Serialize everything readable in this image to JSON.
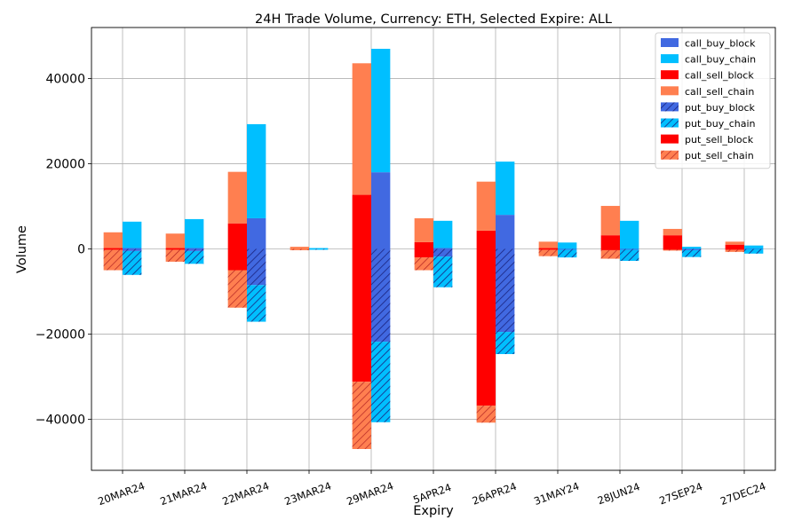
{
  "chart_data": {
    "type": "bar",
    "title": "24H Trade Volume, Currency: ETH, Selected Expire: ALL",
    "xlabel": "Expiry",
    "ylabel": "Volume",
    "ylim": [
      -52000,
      52000
    ],
    "yticks": [
      -40000,
      -20000,
      0,
      20000,
      40000
    ],
    "ytick_labels": [
      "−40000",
      "−20000",
      "0",
      "20000",
      "40000"
    ],
    "grid": true,
    "legend_position": "top-right",
    "categories": [
      "20MAR24",
      "21MAR24",
      "22MAR24",
      "23MAR24",
      "29MAR24",
      "5APR24",
      "26APR24",
      "31MAY24",
      "28JUN24",
      "27SEP24",
      "27DEC24"
    ],
    "colors": {
      "call_buy_block": "#4169e1",
      "call_buy_chain": "#00bfff",
      "call_sell_block": "#ff0000",
      "call_sell_chain": "#ff7f50",
      "put_buy_block": "#4169e1",
      "put_buy_chain": "#00bfff",
      "put_sell_block": "#ff0000",
      "put_sell_chain": "#ff7f50"
    },
    "series": [
      {
        "name": "call_buy_block",
        "group": "buy",
        "side": "call",
        "hatched": false,
        "values": [
          200,
          200,
          7200,
          0,
          18000,
          200,
          8000,
          0,
          0,
          0,
          0
        ]
      },
      {
        "name": "call_buy_chain",
        "group": "buy",
        "side": "call",
        "hatched": false,
        "values": [
          6200,
          6800,
          22100,
          200,
          29000,
          6400,
          12500,
          1500,
          6600,
          500,
          800
        ]
      },
      {
        "name": "call_sell_block",
        "group": "sell",
        "side": "call",
        "hatched": false,
        "values": [
          200,
          200,
          6000,
          0,
          12700,
          1600,
          4300,
          200,
          3200,
          3200,
          1000
        ]
      },
      {
        "name": "call_sell_chain",
        "group": "sell",
        "side": "call",
        "hatched": false,
        "values": [
          3700,
          3400,
          12100,
          500,
          30900,
          5600,
          11500,
          1500,
          6900,
          1500,
          700
        ]
      },
      {
        "name": "put_buy_block",
        "group": "buy",
        "side": "put",
        "hatched": true,
        "values": [
          -500,
          -500,
          -8500,
          0,
          -21800,
          -1800,
          -19500,
          -200,
          -200,
          -300,
          -100
        ]
      },
      {
        "name": "put_buy_chain",
        "group": "buy",
        "side": "put",
        "hatched": true,
        "values": [
          -5600,
          -3000,
          -8600,
          -200,
          -18900,
          -7200,
          -5200,
          -1800,
          -2600,
          -1600,
          -1000
        ]
      },
      {
        "name": "put_sell_block",
        "group": "sell",
        "side": "put",
        "hatched": false,
        "values": [
          -200,
          -200,
          -5000,
          0,
          -31200,
          -2000,
          -36800,
          -200,
          -300,
          -200,
          -200
        ]
      },
      {
        "name": "put_sell_chain",
        "group": "sell",
        "side": "put",
        "hatched": true,
        "values": [
          -4800,
          -2800,
          -8800,
          -300,
          -15800,
          -3000,
          -4000,
          -1500,
          -2000,
          -200,
          -500
        ]
      }
    ]
  }
}
